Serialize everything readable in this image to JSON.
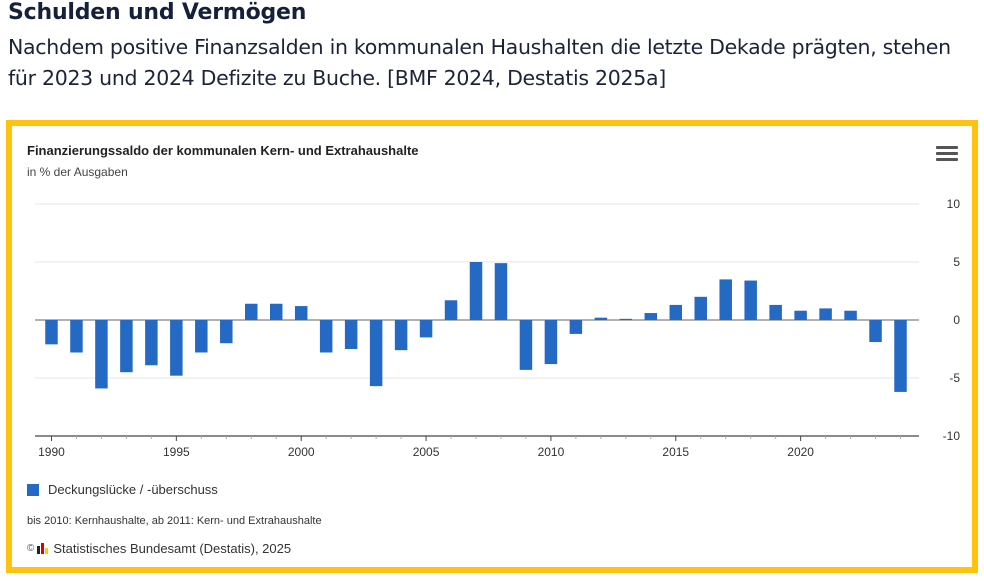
{
  "page": {
    "heading": "Schulden und Vermögen",
    "lead": "Nachdem positive Finanzsalden in kommunalen Haushalten die letzte Dekade prägten, stehen für 2023 und 2024 Defizite zu Buche. [BMF 2024, Destatis 2025a]"
  },
  "frame": {
    "border_color": "#ffc20e"
  },
  "menu": {
    "icon": "hamburger-menu-icon"
  },
  "legend": {
    "label": "Deckungslücke / -überschuss",
    "color": "#2469c3"
  },
  "note": "bis 2010: Kernhaushalte, ab 2011: Kern- und Extrahaushalte",
  "credit": {
    "copyright_symbol": "©",
    "text": "Statistisches Bundesamt (Destatis), 2025"
  },
  "chart_data": {
    "type": "bar",
    "title": "Finanzierungssaldo der kommunalen Kern- und Extrahaushalte",
    "subtitle": "in % der Ausgaben",
    "xlabel": "",
    "ylabel": "",
    "y_axis_position": "right",
    "ylim": [
      -10,
      10
    ],
    "yticks": [
      10,
      5,
      0,
      -5,
      -10
    ],
    "xticks": [
      1990,
      1995,
      2000,
      2005,
      2010,
      2015,
      2020
    ],
    "grid": true,
    "legend_position": "bottom-left",
    "categories": [
      1990,
      1991,
      1992,
      1993,
      1994,
      1995,
      1996,
      1997,
      1998,
      1999,
      2000,
      2001,
      2002,
      2003,
      2004,
      2005,
      2006,
      2007,
      2008,
      2009,
      2010,
      2011,
      2012,
      2013,
      2014,
      2015,
      2016,
      2017,
      2018,
      2019,
      2020,
      2021,
      2022,
      2023,
      2024
    ],
    "series": [
      {
        "name": "Deckungslücke / -überschuss",
        "color": "#2469c3",
        "values": [
          -2.1,
          -2.8,
          -5.9,
          -4.5,
          -3.9,
          -4.8,
          -2.8,
          -2.0,
          1.4,
          1.4,
          1.2,
          -2.8,
          -2.5,
          -5.7,
          -2.6,
          -1.5,
          1.7,
          5.0,
          4.9,
          -4.3,
          -3.8,
          -1.2,
          0.2,
          0.1,
          0.6,
          1.3,
          2.0,
          3.5,
          3.4,
          1.3,
          0.8,
          1.0,
          0.8,
          -1.9,
          -6.2
        ]
      }
    ]
  }
}
